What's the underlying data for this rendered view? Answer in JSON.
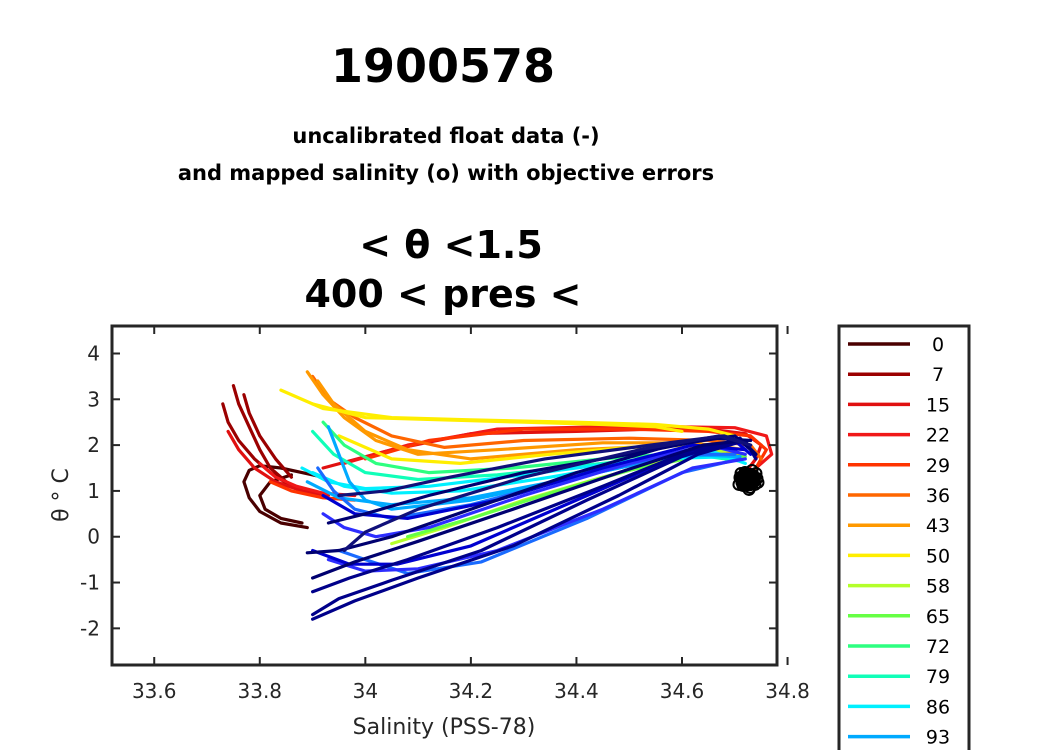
{
  "chart_data": {
    "type": "line",
    "title": "1900578",
    "subtitle_lines": [
      "uncalibrated float data (-)",
      "and mapped salinity (o) with objective errors"
    ],
    "range_lines": [
      "< θ <1.5",
      "400 < pres <"
    ],
    "xlabel": "Salinity (PSS-78)",
    "ylabel": "θ ° C",
    "xlim": [
      33.52,
      34.78
    ],
    "ylim": [
      -2.8,
      4.6
    ],
    "xticks": [
      "33.6",
      "33.8",
      "34",
      "34.2",
      "34.4",
      "34.6",
      "34.8"
    ],
    "xtick_values": [
      33.6,
      33.8,
      34.0,
      34.2,
      34.4,
      34.6,
      34.8
    ],
    "yticks": [
      "4",
      "3",
      "2",
      "1",
      "0",
      "-1",
      "-2"
    ],
    "ytick_values": [
      4,
      3,
      2,
      1,
      0,
      -1,
      -2
    ],
    "grid": false,
    "legend_placement": "outside-right",
    "legend": [
      {
        "label": "0",
        "color": "#4a0000"
      },
      {
        "label": "7",
        "color": "#9b0000"
      },
      {
        "label": "15",
        "color": "#e01010"
      },
      {
        "label": "22",
        "color": "#f01818"
      },
      {
        "label": "29",
        "color": "#ff3300"
      },
      {
        "label": "36",
        "color": "#ff6600"
      },
      {
        "label": "43",
        "color": "#ff9900"
      },
      {
        "label": "50",
        "color": "#ffee00"
      },
      {
        "label": "58",
        "color": "#b4ff2a"
      },
      {
        "label": "65",
        "color": "#66ff44"
      },
      {
        "label": "72",
        "color": "#2dff80"
      },
      {
        "label": "79",
        "color": "#10ffb8"
      },
      {
        "label": "86",
        "color": "#00f0ff"
      },
      {
        "label": "93",
        "color": "#00aaff"
      }
    ],
    "series": [
      {
        "color": "#4a0000",
        "x": [
          33.89,
          33.84,
          33.8,
          33.78,
          33.77,
          33.78,
          33.8,
          33.84,
          33.88,
          33.92
        ],
        "y": [
          0.2,
          0.3,
          0.55,
          0.85,
          1.2,
          1.45,
          1.55,
          1.5,
          1.4,
          1.3
        ]
      },
      {
        "color": "#4a0000",
        "x": [
          33.88,
          33.84,
          33.81,
          33.8,
          33.82,
          33.86
        ],
        "y": [
          0.3,
          0.4,
          0.6,
          0.9,
          1.2,
          1.35
        ]
      },
      {
        "color": "#9b0000",
        "x": [
          33.75,
          33.76,
          33.78,
          33.8,
          33.82,
          33.85,
          33.88
        ],
        "y": [
          3.3,
          2.9,
          2.4,
          1.9,
          1.5,
          1.2,
          1.0
        ]
      },
      {
        "color": "#9b0000",
        "x": [
          33.73,
          33.74,
          33.76,
          33.79,
          33.82,
          33.86
        ],
        "y": [
          2.9,
          2.5,
          2.1,
          1.7,
          1.4,
          1.1
        ]
      },
      {
        "color": "#9b0000",
        "x": [
          33.77,
          33.78,
          33.8,
          33.83,
          33.86
        ],
        "y": [
          3.1,
          2.7,
          2.2,
          1.7,
          1.3
        ]
      },
      {
        "color": "#e01010",
        "x": [
          33.74,
          33.76,
          33.79,
          33.83,
          33.88,
          33.93
        ],
        "y": [
          2.3,
          1.9,
          1.5,
          1.2,
          1.0,
          0.9
        ]
      },
      {
        "color": "#f01818",
        "x": [
          33.8,
          33.83,
          33.87,
          33.92,
          33.98
        ],
        "y": [
          1.6,
          1.3,
          1.1,
          0.95,
          0.9
        ]
      },
      {
        "color": "#ff3300",
        "x": [
          33.82,
          33.86,
          33.92,
          33.98
        ],
        "y": [
          1.2,
          1.0,
          0.85,
          0.8
        ]
      },
      {
        "color": "#e01010",
        "x": [
          33.92,
          34.05,
          34.2,
          34.4,
          34.55,
          34.65,
          34.72,
          34.75,
          34.74,
          34.72
        ],
        "y": [
          1.5,
          1.9,
          2.25,
          2.3,
          2.35,
          2.35,
          2.25,
          2.0,
          1.7,
          1.4
        ]
      },
      {
        "color": "#f01818",
        "x": [
          33.96,
          34.08,
          34.25,
          34.45,
          34.6,
          34.7,
          34.76,
          34.77,
          34.74
        ],
        "y": [
          1.6,
          2.0,
          2.35,
          2.4,
          2.4,
          2.38,
          2.2,
          1.8,
          1.5
        ]
      },
      {
        "color": "#ff3300",
        "x": [
          34.0,
          34.12,
          34.3,
          34.5,
          34.65,
          34.73,
          34.76,
          34.74
        ],
        "y": [
          1.7,
          2.1,
          2.35,
          2.35,
          2.3,
          2.2,
          1.9,
          1.5
        ]
      },
      {
        "color": "#ff6600",
        "x": [
          33.9,
          33.93,
          33.98,
          34.05,
          34.15,
          34.3,
          34.5,
          34.65,
          34.73,
          34.75
        ],
        "y": [
          3.5,
          3.0,
          2.6,
          2.2,
          1.95,
          2.1,
          2.15,
          2.1,
          2.0,
          1.7
        ]
      },
      {
        "color": "#ff9900",
        "x": [
          33.89,
          33.92,
          33.96,
          34.02,
          34.1,
          34.25,
          34.45,
          34.62,
          34.72
        ],
        "y": [
          3.6,
          3.1,
          2.6,
          2.1,
          1.8,
          1.9,
          2.05,
          2.05,
          1.9
        ]
      },
      {
        "color": "#ff9900",
        "x": [
          33.91,
          33.94,
          34.0,
          34.08,
          34.2,
          34.4,
          34.6,
          34.71
        ],
        "y": [
          3.4,
          2.9,
          2.3,
          1.9,
          1.7,
          1.9,
          2.0,
          1.8
        ]
      },
      {
        "color": "#ffee00",
        "x": [
          33.84,
          33.92,
          34.05,
          34.2,
          34.4,
          34.55,
          34.65,
          34.7
        ],
        "y": [
          3.2,
          2.8,
          2.6,
          2.55,
          2.5,
          2.45,
          2.35,
          2.2
        ]
      },
      {
        "color": "#ffee00",
        "x": [
          33.9,
          34.0,
          34.15,
          34.3,
          34.45,
          34.55,
          34.6
        ],
        "y": [
          2.9,
          2.6,
          2.55,
          2.5,
          2.45,
          2.4,
          2.3
        ]
      },
      {
        "color": "#ffee00",
        "x": [
          33.95,
          34.05,
          34.18,
          34.35,
          34.5,
          34.62
        ],
        "y": [
          2.2,
          1.7,
          1.6,
          1.8,
          1.95,
          2.0
        ]
      },
      {
        "color": "#b4ff2a",
        "x": [
          34.05,
          34.15,
          34.3,
          34.45,
          34.6,
          34.7
        ],
        "y": [
          -0.15,
          0.2,
          0.8,
          1.3,
          1.75,
          1.9
        ]
      },
      {
        "color": "#66ff44",
        "x": [
          34.08,
          34.2,
          34.35,
          34.5,
          34.65,
          34.72
        ],
        "y": [
          0.0,
          0.4,
          0.95,
          1.45,
          1.8,
          1.75
        ]
      },
      {
        "color": "#2dff80",
        "x": [
          33.92,
          33.96,
          34.02,
          34.12,
          34.28,
          34.45,
          34.62,
          34.71
        ],
        "y": [
          2.5,
          2.0,
          1.6,
          1.4,
          1.5,
          1.7,
          1.85,
          1.7
        ]
      },
      {
        "color": "#10ffb8",
        "x": [
          33.9,
          33.94,
          34.0,
          34.1,
          34.25,
          34.45,
          34.62,
          34.71
        ],
        "y": [
          2.3,
          1.8,
          1.4,
          1.25,
          1.35,
          1.6,
          1.8,
          1.65
        ]
      },
      {
        "color": "#00f0ff",
        "x": [
          33.88,
          33.93,
          34.0,
          34.12,
          34.3,
          34.5,
          34.66,
          34.72
        ],
        "y": [
          1.5,
          1.2,
          1.05,
          1.1,
          1.35,
          1.65,
          1.85,
          1.6
        ]
      },
      {
        "color": "#00f0ff",
        "x": [
          33.9,
          33.96,
          34.05,
          34.18,
          34.35,
          34.55,
          34.69
        ],
        "y": [
          1.4,
          1.1,
          0.95,
          1.0,
          1.3,
          1.7,
          1.75
        ]
      },
      {
        "color": "#00aaff",
        "x": [
          33.89,
          33.95,
          34.05,
          34.2,
          34.4,
          34.58,
          34.7
        ],
        "y": [
          1.2,
          0.85,
          0.7,
          0.85,
          1.3,
          1.75,
          1.8
        ]
      },
      {
        "color": "#00aaff",
        "x": [
          33.93,
          33.95,
          33.97,
          34.0,
          34.05,
          34.2,
          34.4,
          34.6,
          34.71
        ],
        "y": [
          2.4,
          1.8,
          1.2,
          0.8,
          0.6,
          0.8,
          1.3,
          1.8,
          1.75
        ]
      },
      {
        "color": "#1a6bff",
        "x": [
          33.91,
          33.94,
          33.98,
          34.05,
          34.2,
          34.4,
          34.58,
          34.7
        ],
        "y": [
          1.5,
          1.0,
          0.6,
          0.4,
          0.7,
          1.3,
          1.8,
          1.8
        ]
      },
      {
        "color": "#1a6bff",
        "x": [
          33.95,
          34.0,
          34.08,
          34.22,
          34.42,
          34.6,
          34.71
        ],
        "y": [
          -0.3,
          -0.5,
          -0.8,
          -0.55,
          0.4,
          1.4,
          1.7
        ]
      },
      {
        "color": "#2d2dff",
        "x": [
          33.93,
          34.0,
          34.1,
          34.25,
          34.45,
          34.62,
          34.72
        ],
        "y": [
          -0.5,
          -0.75,
          -0.7,
          -0.3,
          0.6,
          1.5,
          1.7
        ]
      },
      {
        "color": "#2d2dff",
        "x": [
          33.92,
          33.96,
          34.02,
          34.12,
          34.3,
          34.5,
          34.65,
          34.72
        ],
        "y": [
          0.5,
          0.2,
          0.0,
          0.2,
          0.9,
          1.6,
          2.0,
          1.8
        ]
      },
      {
        "color": "#0000d0",
        "x": [
          33.9,
          33.97,
          34.06,
          34.2,
          34.4,
          34.58,
          34.7,
          34.73
        ],
        "y": [
          -0.3,
          -0.6,
          -0.6,
          -0.2,
          0.8,
          1.7,
          2.1,
          1.8
        ]
      },
      {
        "color": "#0000d0",
        "x": [
          33.92,
          33.98,
          34.08,
          34.25,
          34.45,
          34.62,
          34.72
        ],
        "y": [
          0.9,
          0.5,
          0.4,
          0.8,
          1.5,
          2.0,
          1.9
        ]
      },
      {
        "color": "#00008a",
        "x": [
          33.9,
          33.98,
          34.1,
          34.28,
          34.48,
          34.63,
          34.72,
          34.74
        ],
        "y": [
          -1.8,
          -1.4,
          -0.9,
          -0.2,
          0.9,
          1.8,
          2.1,
          1.7
        ]
      },
      {
        "color": "#00008a",
        "x": [
          33.9,
          33.95,
          34.05,
          34.22,
          34.42,
          34.6,
          34.71,
          34.74
        ],
        "y": [
          -1.7,
          -1.35,
          -0.95,
          -0.3,
          0.8,
          1.75,
          2.15,
          1.8
        ]
      },
      {
        "color": "#00008a",
        "x": [
          33.9,
          33.97,
          34.08,
          34.25,
          34.45,
          34.62,
          34.72
        ],
        "y": [
          -1.2,
          -0.9,
          -0.5,
          0.2,
          1.1,
          1.9,
          2.1
        ]
      },
      {
        "color": "#000070",
        "x": [
          33.89,
          33.95,
          34.05,
          34.2,
          34.4,
          34.58,
          34.7,
          34.74
        ],
        "y": [
          -0.35,
          -0.3,
          0.0,
          0.6,
          1.4,
          2.0,
          2.2,
          1.8
        ]
      },
      {
        "color": "#000070",
        "x": [
          33.9,
          33.98,
          34.1,
          34.28,
          34.48,
          34.64,
          34.72
        ],
        "y": [
          -0.9,
          -0.55,
          -0.1,
          0.6,
          1.4,
          2.0,
          2.1
        ]
      },
      {
        "color": "#000070",
        "x": [
          33.93,
          34.0,
          34.12,
          34.3,
          34.5,
          34.66,
          34.73
        ],
        "y": [
          0.3,
          0.5,
          0.9,
          1.4,
          1.8,
          2.15,
          2.1
        ]
      },
      {
        "color": "#10107a",
        "x": [
          33.95,
          34.04,
          34.16,
          34.34,
          34.54,
          34.68,
          34.73
        ],
        "y": [
          0.9,
          1.0,
          1.3,
          1.7,
          2.0,
          2.2,
          2.0
        ]
      },
      {
        "color": "#10107a",
        "x": [
          33.96,
          34.0,
          34.1,
          34.3,
          34.52,
          34.67,
          34.73
        ],
        "y": [
          -0.3,
          0.1,
          0.6,
          1.3,
          1.9,
          2.2,
          2.0
        ]
      }
    ],
    "mapped_cluster": {
      "x": 34.725,
      "y": 1.25,
      "color": "#000000"
    }
  }
}
